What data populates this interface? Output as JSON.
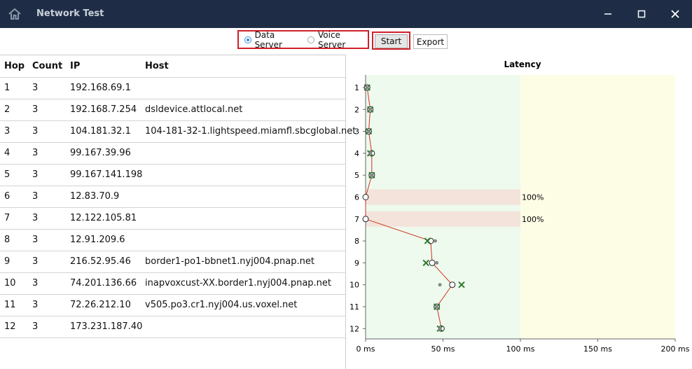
{
  "window": {
    "title": "Network Test"
  },
  "toolbar": {
    "radio_data_label": "Data Server",
    "radio_voice_label": "Voice Server",
    "selected": "Data Server",
    "start_label": "Start",
    "export_label": "Export"
  },
  "table": {
    "headers": [
      "Hop",
      "Count",
      "IP",
      "Host"
    ],
    "rows": [
      {
        "hop": "1",
        "count": "3",
        "ip": "192.168.69.1",
        "host": ""
      },
      {
        "hop": "2",
        "count": "3",
        "ip": "192.168.7.254",
        "host": "dsldevice.attlocal.net"
      },
      {
        "hop": "3",
        "count": "3",
        "ip": "104.181.32.1",
        "host": "104-181-32-1.lightspeed.miamfl.sbcglobal.net"
      },
      {
        "hop": "4",
        "count": "3",
        "ip": "99.167.39.96",
        "host": ""
      },
      {
        "hop": "5",
        "count": "3",
        "ip": "99.167.141.198",
        "host": ""
      },
      {
        "hop": "6",
        "count": "3",
        "ip": "12.83.70.9",
        "host": ""
      },
      {
        "hop": "7",
        "count": "3",
        "ip": "12.122.105.81",
        "host": ""
      },
      {
        "hop": "8",
        "count": "3",
        "ip": "12.91.209.6",
        "host": ""
      },
      {
        "hop": "9",
        "count": "3",
        "ip": "216.52.95.46",
        "host": "border1-po1-bbnet1.nyj004.pnap.net"
      },
      {
        "hop": "10",
        "count": "3",
        "ip": "74.201.136.66",
        "host": "inapvoxcust-XX.border1.nyj004.pnap.net"
      },
      {
        "hop": "11",
        "count": "3",
        "ip": "72.26.212.10",
        "host": "v505.po3.cr1.nyj004.us.voxel.net"
      },
      {
        "hop": "12",
        "count": "3",
        "ip": "173.231.187.40",
        "host": ""
      }
    ]
  },
  "chart_data": {
    "type": "scatter",
    "title": "Latency",
    "xlabel": "",
    "ylabel": "",
    "xlim": [
      0,
      200
    ],
    "x_ticks": [
      "0 ms",
      "50 ms",
      "100 ms",
      "150 ms",
      "200 ms"
    ],
    "y_categories": [
      "1",
      "2",
      "3",
      "4",
      "5",
      "6",
      "7",
      "8",
      "9",
      "10",
      "11",
      "12"
    ],
    "zones": [
      {
        "from": 0,
        "to": 100,
        "color": "#eefaee"
      },
      {
        "from": 100,
        "to": 200,
        "color": "#fdfde6"
      }
    ],
    "loss_bars": [
      {
        "hop": "6",
        "loss_pct": 100,
        "label": "100%"
      },
      {
        "hop": "7",
        "loss_pct": 100,
        "label": "100%"
      }
    ],
    "loss_color": "#f3e3da",
    "series": [
      {
        "marker": "circle",
        "values": [
          1,
          3,
          2,
          4,
          4,
          0,
          0,
          42,
          43,
          56,
          46,
          49
        ]
      },
      {
        "marker": "x",
        "values": [
          1,
          3,
          2,
          3,
          4,
          null,
          null,
          40,
          39,
          62,
          46,
          48
        ]
      },
      {
        "marker": "dot",
        "values": [
          1,
          3,
          2,
          3,
          4,
          null,
          null,
          45,
          46,
          48,
          46,
          48
        ]
      }
    ],
    "line_color": "#cc3322",
    "marker_color": "#2d7a2d"
  }
}
